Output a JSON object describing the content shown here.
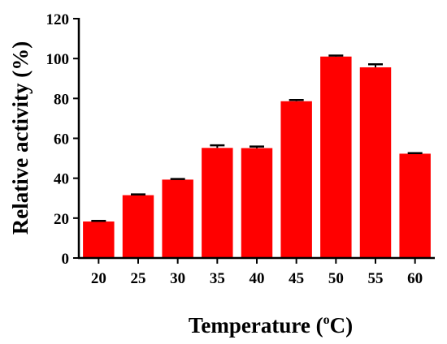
{
  "chart_data": {
    "type": "bar",
    "categories": [
      "20",
      "25",
      "30",
      "35",
      "40",
      "45",
      "50",
      "55",
      "60"
    ],
    "values": [
      18.3,
      31.5,
      39.3,
      55.2,
      55.1,
      78.6,
      101.0,
      95.6,
      52.3
    ],
    "errors": [
      0.3,
      0.4,
      0.3,
      1.3,
      0.8,
      0.6,
      0.5,
      1.5,
      0.3
    ],
    "xlabel": "Temperature (",
    "xlabel_degree": "o",
    "xlabel_unit": "C)",
    "ylabel": "Relative activity (%)",
    "ylim": [
      0,
      120
    ],
    "yticks": [
      "0",
      "20",
      "40",
      "60",
      "80",
      "100",
      "120"
    ],
    "bar_color": "#ff0000",
    "grid": false,
    "legend": "none"
  }
}
